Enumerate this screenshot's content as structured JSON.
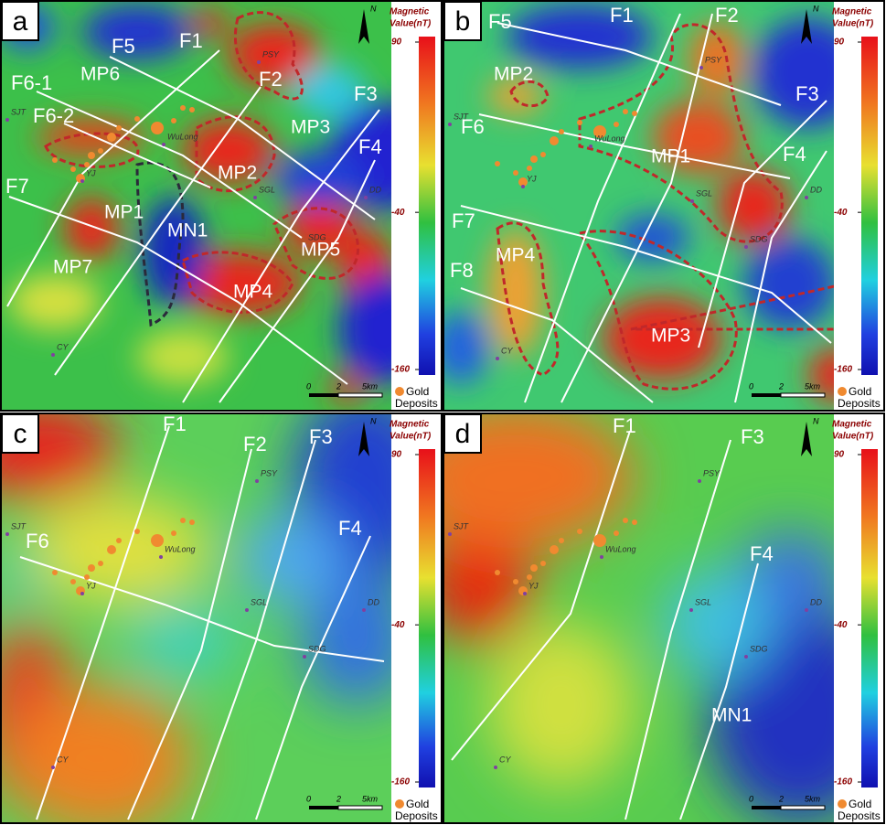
{
  "panels": [
    {
      "letter": "a",
      "north": "N",
      "colorbar": {
        "title": [
          "Magnetic",
          "Value(nT)"
        ],
        "ticks": [
          90,
          -40,
          -160
        ]
      },
      "legend": [
        "Gold",
        "Deposits"
      ],
      "scale": [
        "0",
        "2",
        "5km"
      ],
      "faults": [
        "F5",
        "F1",
        "F6-1",
        "F6-2",
        "F2",
        "F3",
        "F4",
        "F7"
      ],
      "anomalies": [
        "MP6",
        "MP3",
        "MP2",
        "MP1",
        "MN1",
        "MP5",
        "MP4",
        "MP7"
      ],
      "places": [
        "PSY",
        "SJT",
        "WuLong",
        "YJ",
        "SGL",
        "DD",
        "SDG",
        "CY"
      ]
    },
    {
      "letter": "b",
      "north": "N",
      "colorbar": {
        "title": [
          "Magnetic",
          "Value(nT)"
        ],
        "ticks": [
          90,
          -40,
          -160
        ]
      },
      "legend": [
        "Gold",
        "Deposits"
      ],
      "scale": [
        "0",
        "2",
        "5km"
      ],
      "faults": [
        "F1",
        "F2",
        "F5",
        "F3",
        "F6",
        "F4",
        "F7",
        "F8"
      ],
      "anomalies": [
        "MP2",
        "MP1",
        "MP4",
        "MP3"
      ],
      "places": [
        "PSY",
        "SJT",
        "WuLong",
        "YJ",
        "SGL",
        "DD",
        "SDG",
        "CY"
      ]
    },
    {
      "letter": "c",
      "north": "N",
      "colorbar": {
        "title": [
          "Magnetic",
          "Value(nT)"
        ],
        "ticks": [
          90,
          -40,
          -160
        ]
      },
      "legend": [
        "Gold",
        "Deposits"
      ],
      "scale": [
        "0",
        "2",
        "5km"
      ],
      "faults": [
        "F1",
        "F2",
        "F3",
        "F4",
        "F6"
      ],
      "anomalies": [],
      "places": [
        "PSY",
        "SJT",
        "WuLong",
        "YJ",
        "SGL",
        "DD",
        "SDG",
        "CY"
      ]
    },
    {
      "letter": "d",
      "north": "N",
      "colorbar": {
        "title": [
          "Magnetic",
          "Value(nT)"
        ],
        "ticks": [
          90,
          -40,
          -160
        ]
      },
      "legend": [
        "Gold",
        "Deposits"
      ],
      "scale": [
        "0",
        "2",
        "5km"
      ],
      "faults": [
        "F1",
        "F3",
        "F4"
      ],
      "anomalies": [
        "MN1"
      ],
      "places": [
        "PSY",
        "SJT",
        "WuLong",
        "YJ",
        "SGL",
        "DD",
        "SDG",
        "CY"
      ]
    }
  ]
}
